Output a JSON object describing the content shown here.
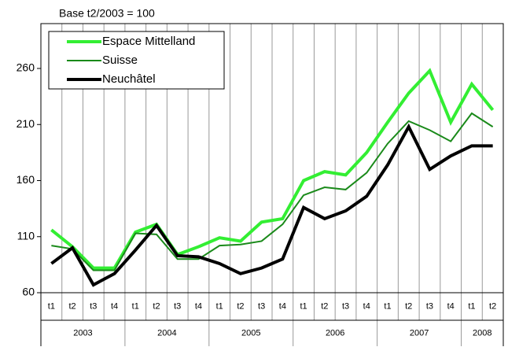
{
  "chart_data": {
    "type": "line",
    "annotation": "Base t2/2003 = 100",
    "categories": [
      [
        "2003",
        "t1"
      ],
      [
        "2003",
        "t2"
      ],
      [
        "2003",
        "t3"
      ],
      [
        "2003",
        "t4"
      ],
      [
        "2004",
        "t1"
      ],
      [
        "2004",
        "t2"
      ],
      [
        "2004",
        "t3"
      ],
      [
        "2004",
        "t4"
      ],
      [
        "2005",
        "t1"
      ],
      [
        "2005",
        "t2"
      ],
      [
        "2005",
        "t3"
      ],
      [
        "2005",
        "t4"
      ],
      [
        "2006",
        "t1"
      ],
      [
        "2006",
        "t2"
      ],
      [
        "2006",
        "t3"
      ],
      [
        "2006",
        "t4"
      ],
      [
        "2007",
        "t1"
      ],
      [
        "2007",
        "t2"
      ],
      [
        "2007",
        "t3"
      ],
      [
        "2007",
        "t4"
      ],
      [
        "2008",
        "t1"
      ],
      [
        "2008",
        "t2"
      ]
    ],
    "series": [
      {
        "name": "Espace Mittelland",
        "color": "#33ee33",
        "width": 4,
        "values": [
          116,
          101,
          82,
          82,
          114,
          121,
          94,
          101,
          109,
          106,
          123,
          126,
          160,
          168,
          165,
          185,
          212,
          238,
          258,
          212,
          246,
          223
        ]
      },
      {
        "name": "Suisse",
        "color": "#1a8a1a",
        "width": 2,
        "values": [
          102,
          99,
          80,
          80,
          113,
          112,
          90,
          90,
          102,
          103,
          106,
          121,
          147,
          154,
          152,
          167,
          193,
          213,
          205,
          195,
          220,
          208
        ]
      },
      {
        "name": "Neuchâtel",
        "color": "#000000",
        "width": 4,
        "values": [
          86,
          100,
          67,
          77,
          98,
          120,
          93,
          92,
          86,
          77,
          82,
          90,
          136,
          126,
          133,
          146,
          174,
          208,
          170,
          182,
          191,
          191
        ]
      }
    ],
    "ylim": [
      60,
      300
    ],
    "yticks": [
      60,
      110,
      160,
      210,
      260
    ],
    "grid": "x",
    "legend": "upper left"
  }
}
